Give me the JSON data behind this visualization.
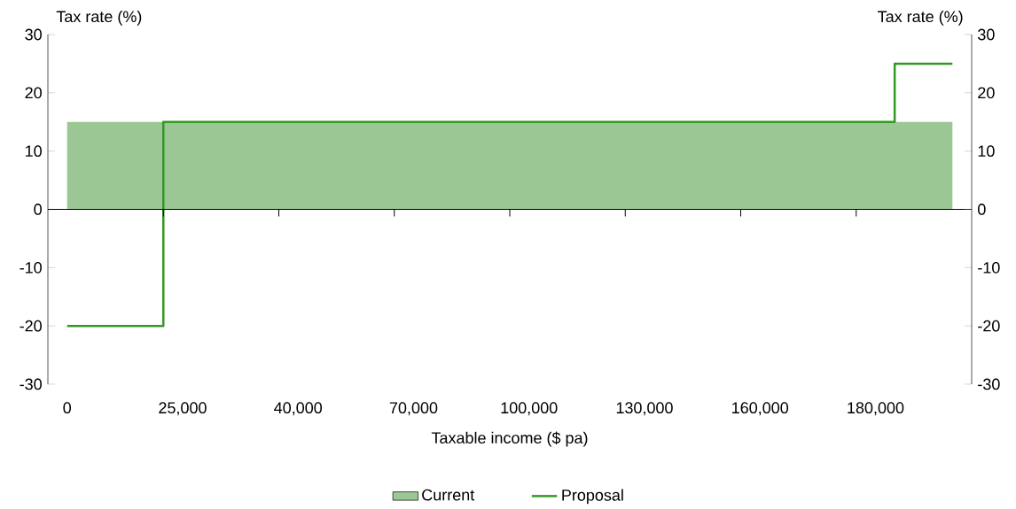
{
  "chart_data": {
    "type": "area",
    "xlabel": "Taxable income ($ pa)",
    "ylabel": "Tax rate (%)",
    "y2label": "Tax rate (%)",
    "categories": [
      "0",
      null,
      null,
      "25,000",
      null,
      null,
      "40,000",
      null,
      null,
      "70,000",
      null,
      null,
      "100,000",
      null,
      null,
      "130,000",
      null,
      null,
      "160,000",
      null,
      null,
      "180,000",
      null,
      null
    ],
    "series": [
      {
        "name": "Current",
        "color": "#9bc794",
        "values": [
          15,
          15,
          15,
          15,
          15,
          15,
          15,
          15,
          15,
          15,
          15,
          15,
          15,
          15,
          15,
          15,
          15,
          15,
          15,
          15,
          15,
          15,
          15,
          15
        ]
      },
      {
        "name": "Proposal",
        "type": "step",
        "color": "#339922",
        "values": [
          -20,
          -20,
          -20,
          15,
          15,
          15,
          15,
          15,
          15,
          15,
          15,
          15,
          15,
          15,
          15,
          15,
          15,
          15,
          15,
          15,
          15,
          15,
          25,
          25
        ]
      }
    ],
    "ylim": [
      -30,
      30
    ],
    "yticks": [
      -30,
      -20,
      -10,
      0,
      10,
      20,
      30
    ],
    "y2lim": [
      -30,
      30
    ],
    "y2ticks": [
      -30,
      -20,
      -10,
      0,
      10,
      20,
      30
    ],
    "legend": "bottom"
  }
}
